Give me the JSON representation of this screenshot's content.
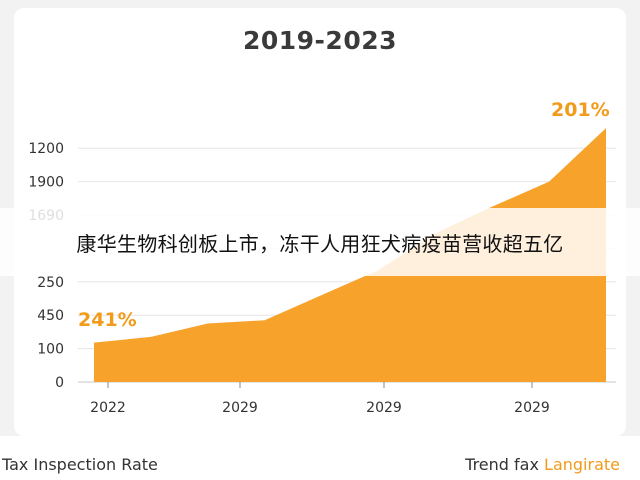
{
  "chart_data": {
    "type": "area",
    "title": "2019-2023",
    "y_tick_labels": [
      "0",
      "100",
      "450",
      "250",
      "",
      "1690",
      "1900",
      "1200"
    ],
    "x_tick_labels": [
      "2022",
      "2029",
      "2029",
      "2029"
    ],
    "series": [
      {
        "color": "#f6a22b",
        "x": [
          0,
          1,
          2,
          3,
          4,
          5,
          6,
          7,
          8,
          9
        ],
        "values": [
          1.18,
          1.35,
          1.75,
          1.85,
          2.6,
          3.35,
          4.45,
          5.25,
          6.0,
          7.6
        ]
      }
    ],
    "annotations": [
      {
        "text": "241%",
        "position": "start"
      },
      {
        "text": "201%",
        "position": "end"
      }
    ],
    "grid": "horizontal",
    "accent_color": "#f29b1b"
  },
  "caption": "康华生物科创板上市，冻干人用狂犬病疫苗营收超五亿",
  "footer": {
    "left": "Tax Inspection Rate",
    "right_prefix": "Trend fax ",
    "right_accent": "Langirate"
  }
}
